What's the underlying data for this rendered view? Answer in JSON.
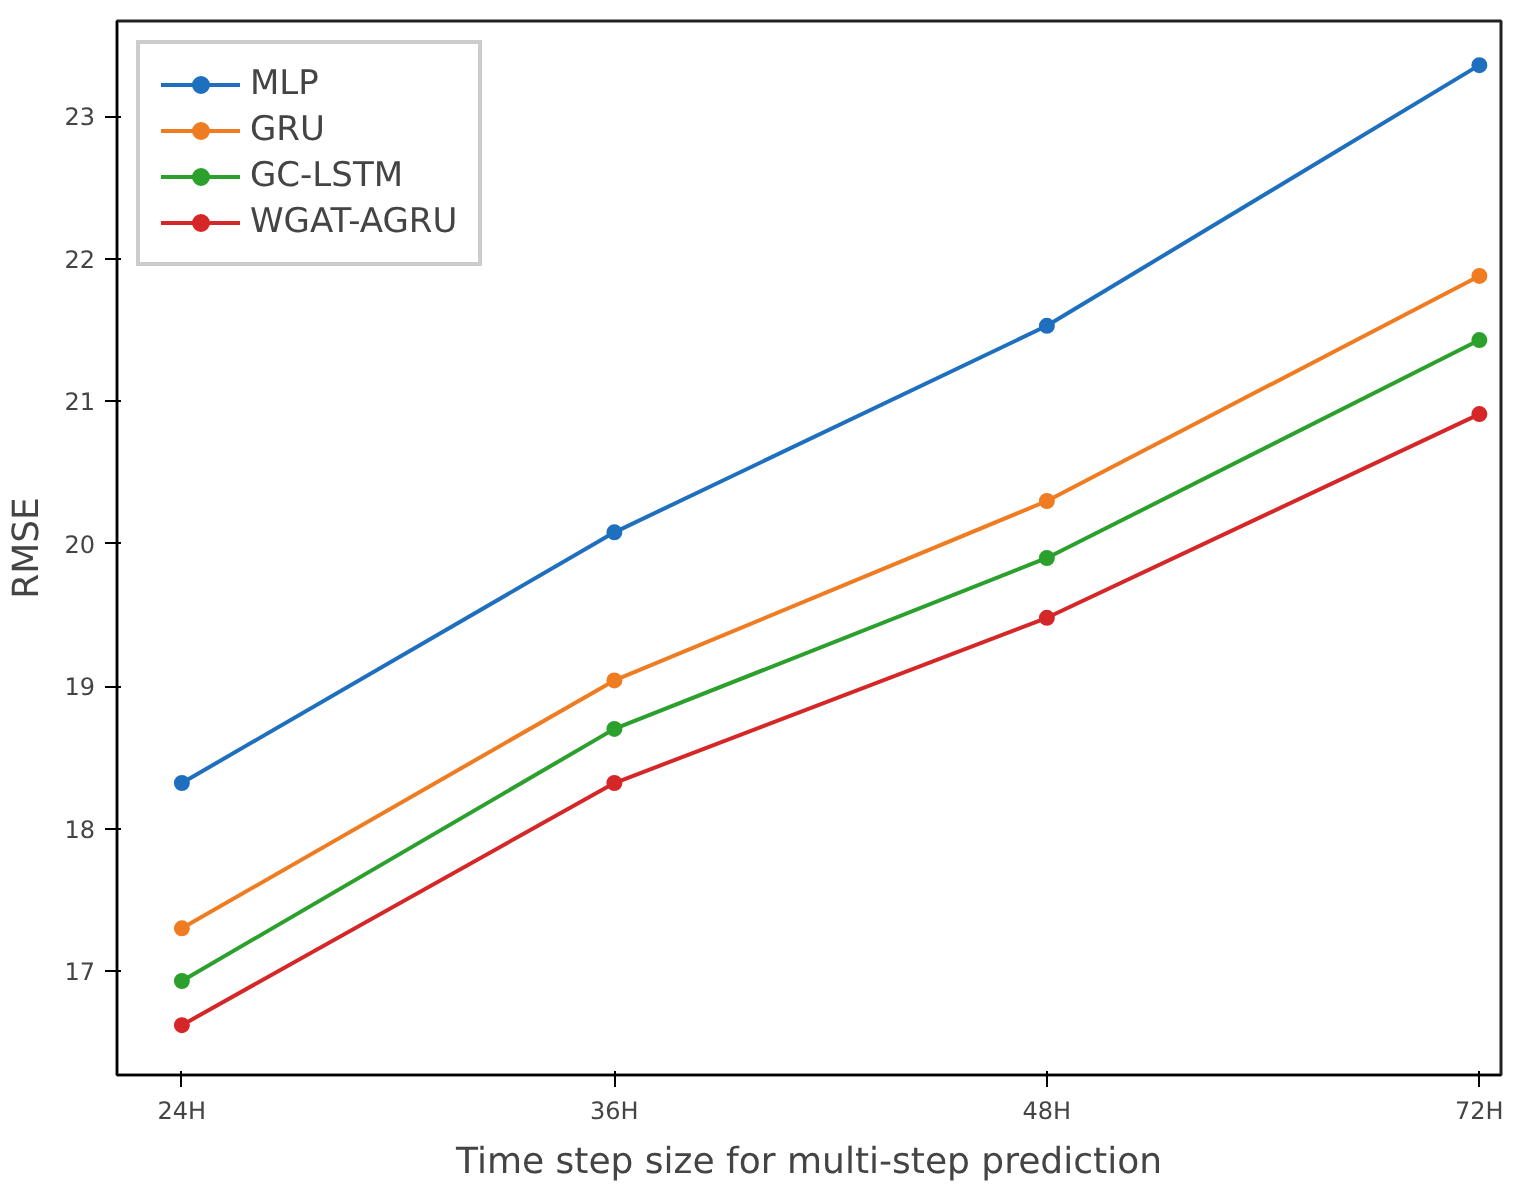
{
  "chart_data": {
    "type": "line",
    "xlabel": "Time step size for multi-step prediction",
    "ylabel": "RMSE",
    "categories": [
      "24H",
      "36H",
      "48H",
      "72H"
    ],
    "series": [
      {
        "name": "MLP",
        "color": "#1f6fbf",
        "values": [
          18.32,
          20.08,
          21.53,
          23.36
        ]
      },
      {
        "name": "GRU",
        "color": "#f07c22",
        "values": [
          17.3,
          19.04,
          20.3,
          21.88
        ]
      },
      {
        "name": "GC-LSTM",
        "color": "#2ca02c",
        "values": [
          16.93,
          18.7,
          19.9,
          21.43
        ]
      },
      {
        "name": "WGAT-AGRU",
        "color": "#d62728",
        "values": [
          16.62,
          18.32,
          19.48,
          20.91
        ]
      }
    ],
    "ylim": [
      16.27,
      23.67
    ],
    "yticks": [
      17,
      18,
      19,
      20,
      21,
      22,
      23
    ],
    "grid": false,
    "legend": "top left",
    "marker": "circle",
    "line_style": "solid"
  }
}
